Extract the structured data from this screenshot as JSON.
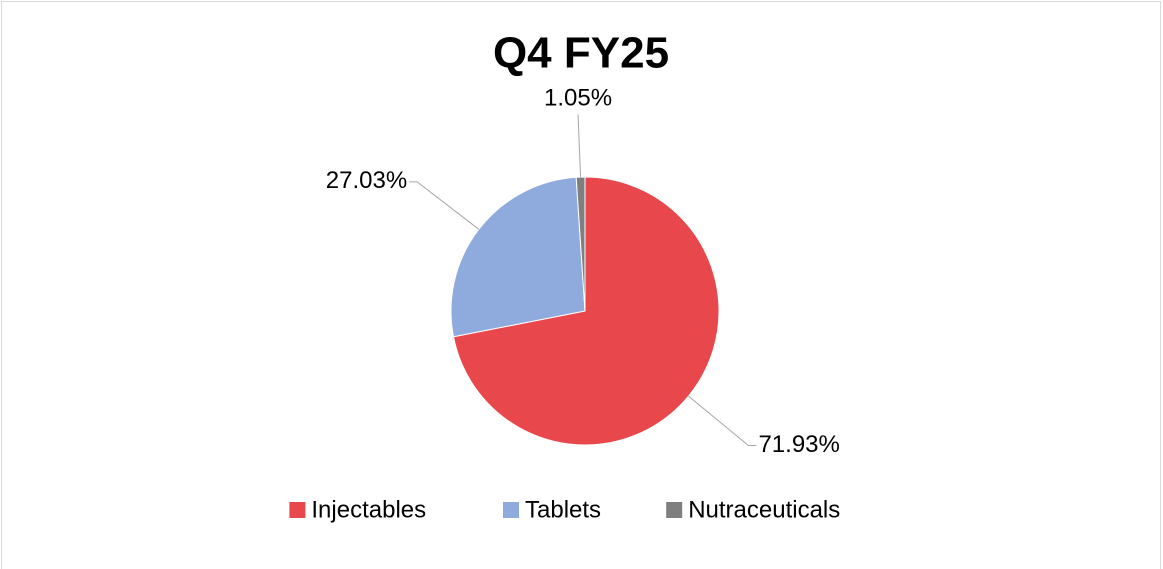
{
  "chart_data": {
    "type": "pie",
    "title": "Q4 FY25",
    "categories": [
      "Injectables",
      "Tablets",
      "Nutraceuticals"
    ],
    "values": [
      71.93,
      27.03,
      1.05
    ],
    "value_labels": [
      "71.93%",
      "27.03%",
      "1.05%"
    ],
    "colors": [
      "#e8474c",
      "#8faadc",
      "#7f7f7f"
    ],
    "legend": "bottom"
  }
}
